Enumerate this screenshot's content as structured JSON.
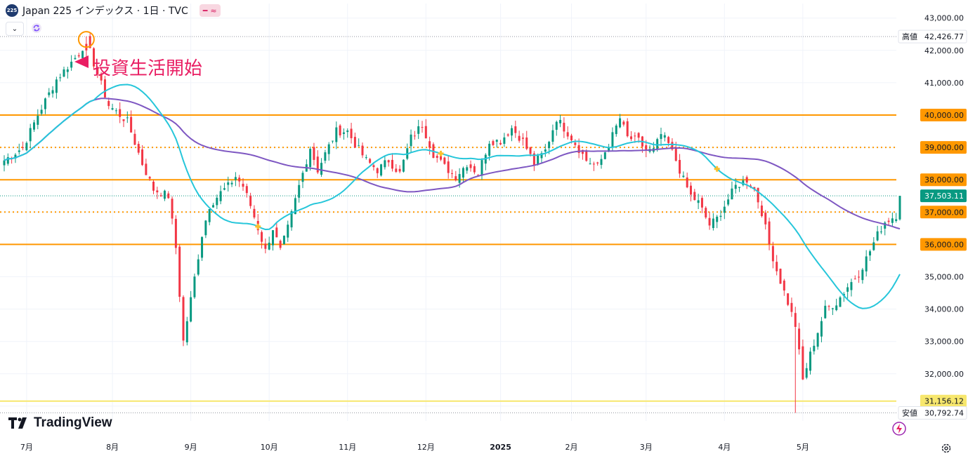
{
  "header": {
    "title": "Japan 225 インデックス · 1日 · TVC",
    "symbol_badge": "225",
    "pill_icons": [
      "minus-icon",
      "approx-icon"
    ]
  },
  "annotation": "投資生活開始",
  "logo": "TradingView",
  "colors": {
    "up": "#089981",
    "down": "#f23645",
    "ma_short": "#26c6da",
    "ma_long": "#7e57c2",
    "level_line": "#ff9800",
    "support_line": "#f7e76d",
    "annotation": "#e91e63",
    "price_label_bg": "#089981"
  },
  "chart_data": {
    "type": "candlestick",
    "ylim": [
      30500,
      43300
    ],
    "y_ticks": [
      {
        "v": 43000,
        "label": "43,000.00"
      },
      {
        "v": 42000,
        "label": "42,000.00"
      },
      {
        "v": 41000,
        "label": "41,000.00"
      },
      {
        "v": 35000,
        "label": "35,000.00"
      },
      {
        "v": 34000,
        "label": "34,000.00"
      },
      {
        "v": 33000,
        "label": "33,000.00"
      },
      {
        "v": 32000,
        "label": "32,000.00"
      }
    ],
    "level_lines": [
      {
        "v": 40000,
        "label": "40,000.00",
        "style": "solid"
      },
      {
        "v": 39000,
        "label": "39,000.00",
        "style": "dotted"
      },
      {
        "v": 38000,
        "label": "38,000.00",
        "style": "solid"
      },
      {
        "v": 37000,
        "label": "37,000.00",
        "style": "dotted"
      },
      {
        "v": 36000,
        "label": "36,000.00",
        "style": "solid"
      }
    ],
    "support_line": {
      "v": 31156.12,
      "label": "31,156.12"
    },
    "high": {
      "v": 42426.77,
      "tag": "高値",
      "label": "42,426.77"
    },
    "low": {
      "v": 30792.74,
      "tag": "安値",
      "label": "30,792.74"
    },
    "last_price": {
      "v": 37503.11,
      "label": "37,503.11"
    },
    "x_labels": [
      "7月",
      "8月",
      "9月",
      "10月",
      "11月",
      "12月",
      "2025",
      "2月",
      "3月",
      "4月",
      "5月"
    ],
    "anchors": [
      [
        0,
        38600
      ],
      [
        5,
        39000
      ],
      [
        9,
        40000
      ],
      [
        14,
        41100
      ],
      [
        20,
        41900
      ],
      [
        22,
        42300
      ],
      [
        24,
        41600
      ],
      [
        28,
        40300
      ],
      [
        33,
        39800
      ],
      [
        37,
        38500
      ],
      [
        40,
        37700
      ],
      [
        44,
        37500
      ],
      [
        46,
        35900
      ],
      [
        48,
        33000
      ],
      [
        50,
        34300
      ],
      [
        53,
        36300
      ],
      [
        55,
        37200
      ],
      [
        58,
        37600
      ],
      [
        60,
        37800
      ],
      [
        62,
        38100
      ],
      [
        64,
        37800
      ],
      [
        66,
        37200
      ],
      [
        68,
        36500
      ],
      [
        70,
        35800
      ],
      [
        72,
        36500
      ],
      [
        74,
        35800
      ],
      [
        76,
        36500
      ],
      [
        79,
        37800
      ],
      [
        82,
        39000
      ],
      [
        84,
        38300
      ],
      [
        86,
        38800
      ],
      [
        89,
        39500
      ],
      [
        92,
        39500
      ],
      [
        94,
        39100
      ],
      [
        97,
        38600
      ],
      [
        100,
        38300
      ],
      [
        103,
        38600
      ],
      [
        106,
        38200
      ],
      [
        109,
        39300
      ],
      [
        112,
        39700
      ],
      [
        115,
        38800
      ],
      [
        118,
        38400
      ],
      [
        121,
        38100
      ],
      [
        124,
        38500
      ],
      [
        127,
        38200
      ],
      [
        130,
        39200
      ],
      [
        133,
        39200
      ],
      [
        136,
        39600
      ],
      [
        139,
        39200
      ],
      [
        142,
        38500
      ],
      [
        145,
        38900
      ],
      [
        148,
        39900
      ],
      [
        152,
        39300
      ],
      [
        156,
        38600
      ],
      [
        159,
        38400
      ],
      [
        162,
        39100
      ],
      [
        165,
        39900
      ],
      [
        167,
        39300
      ],
      [
        170,
        39200
      ],
      [
        172,
        38900
      ],
      [
        174,
        38900
      ],
      [
        176,
        39400
      ],
      [
        178,
        39100
      ],
      [
        180,
        38600
      ],
      [
        182,
        38000
      ],
      [
        184,
        37500
      ],
      [
        186,
        37300
      ],
      [
        189,
        36600
      ],
      [
        191,
        36800
      ],
      [
        193,
        37200
      ],
      [
        196,
        37800
      ],
      [
        199,
        38000
      ],
      [
        201,
        37700
      ],
      [
        203,
        37000
      ],
      [
        205,
        36000
      ],
      [
        207,
        35200
      ],
      [
        210,
        34200
      ],
      [
        212,
        33500
      ],
      [
        214,
        31800
      ],
      [
        216,
        32600
      ],
      [
        218,
        33300
      ],
      [
        220,
        34000
      ],
      [
        223,
        34200
      ],
      [
        226,
        34700
      ],
      [
        229,
        35100
      ],
      [
        232,
        35800
      ],
      [
        234,
        36300
      ],
      [
        236,
        36700
      ],
      [
        239,
        36900
      ],
      [
        240,
        37500
      ]
    ],
    "candle_count": 241,
    "ma_short_period": 25,
    "ma_long_period": 75,
    "markers": [
      {
        "index": 22,
        "type": "circle-marker"
      },
      {
        "index": 68,
        "type": "cross-marker"
      },
      {
        "index": 117,
        "type": "cross-marker"
      },
      {
        "index": 191,
        "type": "cross-marker"
      }
    ]
  }
}
